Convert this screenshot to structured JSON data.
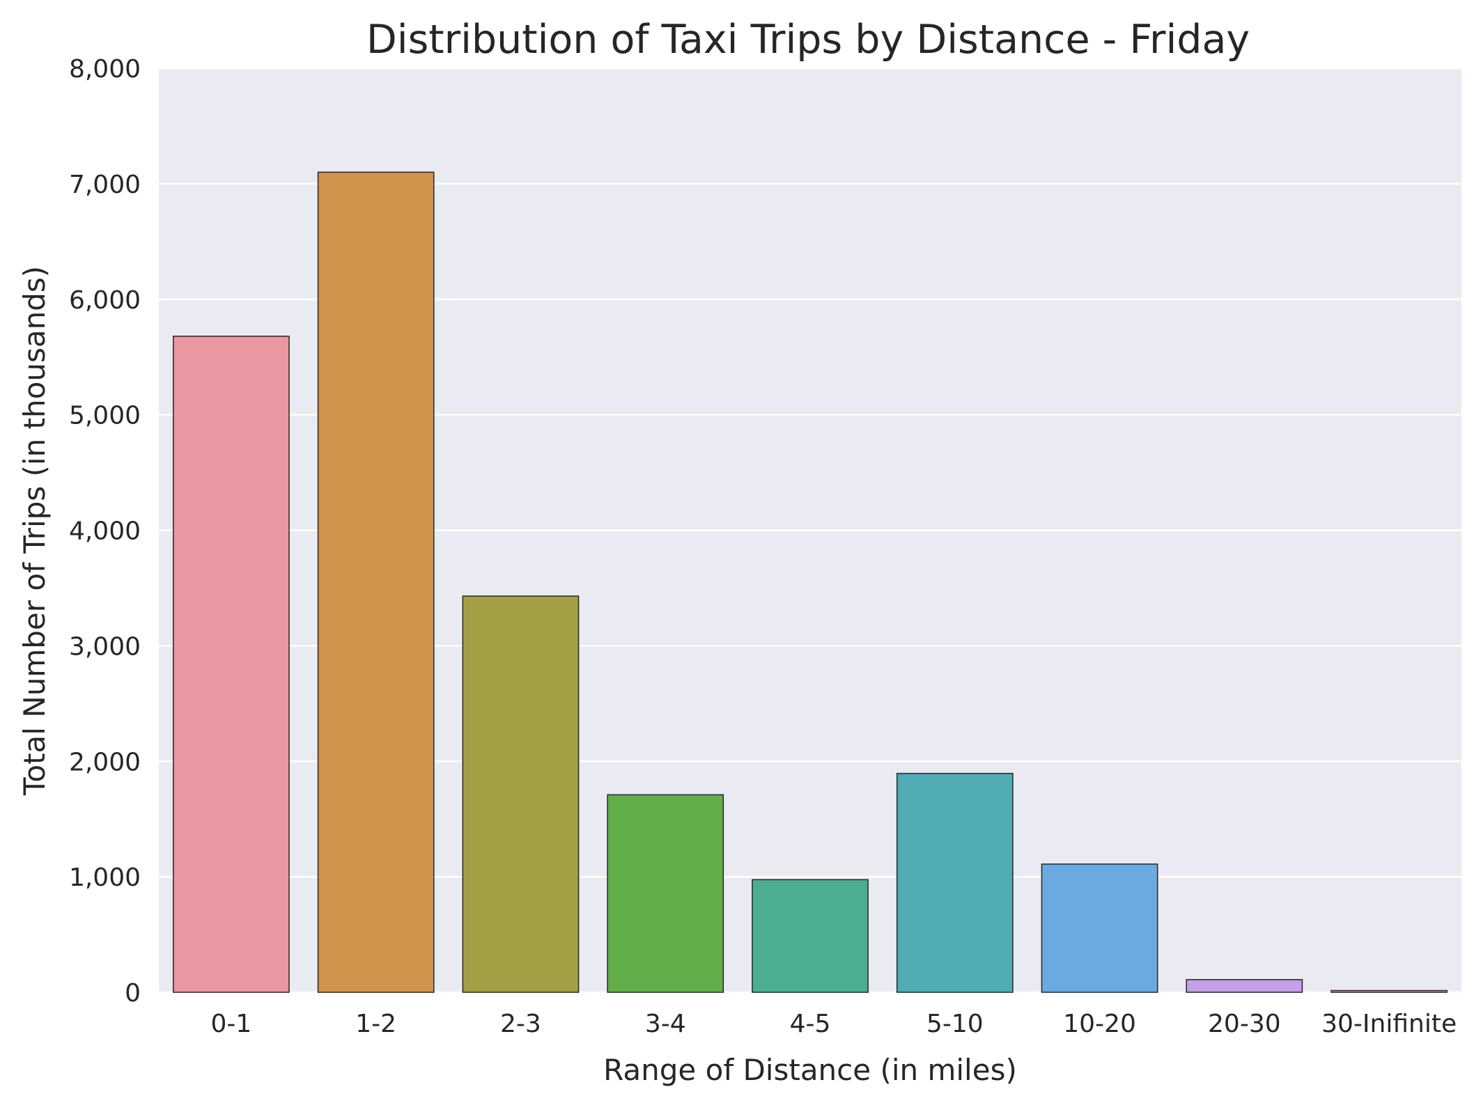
{
  "chart_data": {
    "type": "bar",
    "title": "Distribution of Taxi Trips by Distance - Friday",
    "xlabel": "Range of Distance (in miles)",
    "ylabel": "Total Number of Trips (in thousands)",
    "categories": [
      "0-1",
      "1-2",
      "2-3",
      "3-4",
      "4-5",
      "5-10",
      "10-20",
      "20-30",
      "30-Inifinite"
    ],
    "values": [
      5680,
      7100,
      3430,
      1710,
      975,
      1895,
      1110,
      110,
      15
    ],
    "ylim": [
      0,
      8000
    ],
    "yticks": [
      0,
      1000,
      2000,
      3000,
      4000,
      5000,
      6000,
      7000,
      8000
    ],
    "ytick_labels": [
      "0",
      "1,000",
      "2,000",
      "3,000",
      "4,000",
      "5,000",
      "6,000",
      "7,000",
      "8,000"
    ],
    "grid": "horizontal",
    "background_color": "#eaeaf2",
    "grid_color": "#ffffff",
    "edge_color": "#262626",
    "colors": [
      "#ea96a3",
      "#d0944c",
      "#a29f45",
      "#62ae48",
      "#4bae91",
      "#4fabb4",
      "#6aaae0",
      "#c49fea",
      "#e98fcc"
    ]
  }
}
